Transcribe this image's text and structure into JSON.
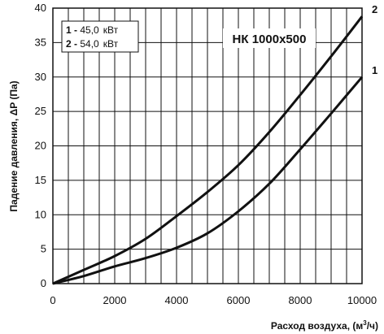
{
  "chart_data": {
    "type": "line",
    "title": "НК 1000x500",
    "xlabel": "Расход воздуха, (м3/ч)",
    "xlabel_parts": {
      "text": "Расход воздуха, (м",
      "sup": "3",
      "tail": "/ч)"
    },
    "ylabel": "Падение давления, ΔP (Па)",
    "xlim": [
      0,
      10000
    ],
    "ylim": [
      0,
      40
    ],
    "x_ticks": [
      "0",
      "2000",
      "4000",
      "6000",
      "8000",
      "10000"
    ],
    "y_ticks": [
      "0",
      "5",
      "10",
      "15",
      "20",
      "25",
      "30",
      "35",
      "40"
    ],
    "grid": true,
    "legend": {
      "placement": "top-left",
      "entries": [
        {
          "num": "1",
          "sep": " - ",
          "value": "45,0",
          "unit": "кВт"
        },
        {
          "num": "2",
          "sep": " - ",
          "value": "54,0",
          "unit": "кВт"
        }
      ]
    },
    "series": [
      {
        "name": "1",
        "x": [
          0,
          1000,
          2000,
          3000,
          4000,
          5000,
          6000,
          7000,
          8000,
          9000,
          10000
        ],
        "y": [
          0,
          1.1,
          2.5,
          3.7,
          5.2,
          7.3,
          10.5,
          14.5,
          19.5,
          24.7,
          30.0
        ]
      },
      {
        "name": "2",
        "x": [
          0,
          1000,
          2000,
          3000,
          4000,
          5000,
          6000,
          7000,
          8000,
          9000,
          10000
        ],
        "y": [
          0,
          2.0,
          4.0,
          6.5,
          9.8,
          13.3,
          17.2,
          22.0,
          27.4,
          33.0,
          38.8
        ]
      }
    ]
  }
}
